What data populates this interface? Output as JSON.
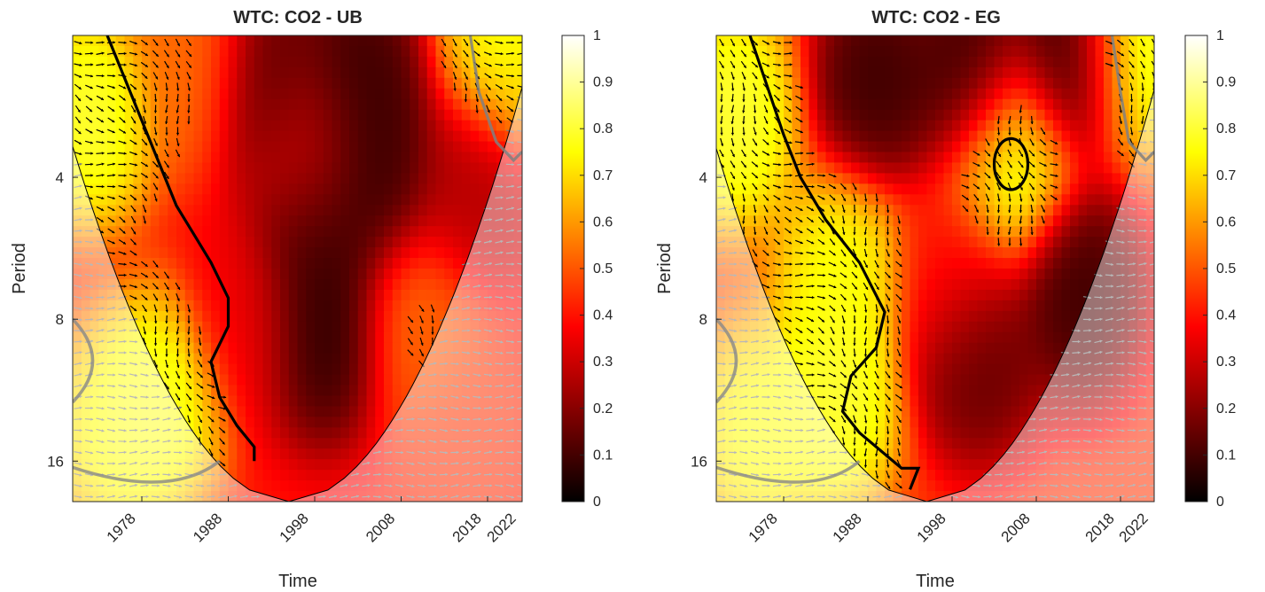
{
  "chart_data": [
    {
      "type": "heatmap",
      "title": "WTC: CO2 - UB",
      "xlabel": "Time",
      "ylabel": "Period",
      "x_ticks": [
        "1978",
        "1988",
        "1998",
        "2008",
        "2018",
        "2022"
      ],
      "x_tick_values": [
        1978,
        1988,
        1998,
        2008,
        2018,
        2022
      ],
      "xlim": [
        1970,
        2022
      ],
      "y_ticks": [
        "4",
        "8",
        "16"
      ],
      "y_tick_values": [
        4,
        8,
        16
      ],
      "ylim": [
        2,
        19.5
      ],
      "y_scale": "log2",
      "y_direction": "reversed",
      "colorbar": {
        "ticks": [
          "0",
          "0.1",
          "0.2",
          "0.3",
          "0.4",
          "0.5",
          "0.6",
          "0.7",
          "0.8",
          "0.9",
          "1"
        ],
        "range": [
          0,
          1
        ],
        "colormap": [
          "#000000",
          "#550000",
          "#aa0000",
          "#ff0000",
          "#ff5500",
          "#ffaa00",
          "#ffff00",
          "#ffff80",
          "#ffffff"
        ]
      },
      "coi_apex_year": 1995,
      "coherence_hotspots": [
        {
          "year": 1972,
          "period": 3,
          "coherence": 0.85
        },
        {
          "year": 1980,
          "period": 12,
          "coherence": 0.85
        },
        {
          "year": 1975,
          "period": 14,
          "coherence": 0.8
        },
        {
          "year": 1984,
          "period": 2.3,
          "coherence": 0.55
        },
        {
          "year": 1993,
          "period": 2.5,
          "coherence": 0.1
        },
        {
          "year": 2003,
          "period": 2.5,
          "coherence": 0.05
        },
        {
          "year": 1997,
          "period": 3.6,
          "coherence": 0.35
        },
        {
          "year": 2005,
          "period": 4,
          "coherence": 0.05
        },
        {
          "year": 1998,
          "period": 5.2,
          "coherence": 0.05
        },
        {
          "year": 1999,
          "period": 8.5,
          "coherence": 0.03
        },
        {
          "year": 2010,
          "period": 8,
          "coherence": 0.55
        },
        {
          "year": 1990,
          "period": 8,
          "coherence": 0.35
        },
        {
          "year": 2020,
          "period": 2.1,
          "coherence": 0.8
        },
        {
          "year": 2016,
          "period": 4.3,
          "coherence": 0.25
        },
        {
          "year": 2015,
          "period": 14,
          "coherence": 0.45
        }
      ],
      "coherence_background": 0.4,
      "significance_contour_years": [
        1974,
        1976,
        1978,
        1980,
        1982,
        1984,
        1986,
        1988,
        1988,
        1986,
        1987,
        1989,
        1991,
        1991
      ],
      "significance_contour_log2_periods": [
        1.0,
        1.3,
        1.6,
        1.9,
        2.2,
        2.4,
        2.6,
        2.85,
        3.05,
        3.3,
        3.55,
        3.75,
        3.9,
        4.0
      ],
      "secondary_contour_years": [
        2016,
        2017,
        2019,
        2021,
        2022
      ],
      "secondary_contour_log2_periods": [
        1.0,
        1.4,
        1.75,
        1.88,
        1.82
      ]
    },
    {
      "type": "heatmap",
      "title": "WTC: CO2 - EG",
      "xlabel": "Time",
      "ylabel": "Period",
      "x_ticks": [
        "1978",
        "1988",
        "1998",
        "2008",
        "2018",
        "2022"
      ],
      "x_tick_values": [
        1978,
        1988,
        1998,
        2008,
        2018,
        2022
      ],
      "xlim": [
        1970,
        2022
      ],
      "y_ticks": [
        "4",
        "8",
        "16"
      ],
      "y_tick_values": [
        4,
        8,
        16
      ],
      "ylim": [
        2,
        19.5
      ],
      "y_scale": "log2",
      "y_direction": "reversed",
      "colorbar": {
        "ticks": [
          "0",
          "0.1",
          "0.2",
          "0.3",
          "0.4",
          "0.5",
          "0.6",
          "0.7",
          "0.8",
          "0.9",
          "1"
        ],
        "range": [
          0,
          1
        ],
        "colormap": [
          "#000000",
          "#550000",
          "#aa0000",
          "#ff0000",
          "#ff5500",
          "#ffaa00",
          "#ffff00",
          "#ffff80",
          "#ffffff"
        ]
      },
      "coi_apex_year": 1995,
      "coherence_hotspots": [
        {
          "year": 1972,
          "period": 3,
          "coherence": 0.85
        },
        {
          "year": 1984,
          "period": 12,
          "coherence": 0.85
        },
        {
          "year": 1975,
          "period": 14,
          "coherence": 0.8
        },
        {
          "year": 1985,
          "period": 6.5,
          "coherence": 0.8
        },
        {
          "year": 1989,
          "period": 2.5,
          "coherence": 0.05
        },
        {
          "year": 2000,
          "period": 2.4,
          "coherence": 0.05
        },
        {
          "year": 2012,
          "period": 2.2,
          "coherence": 0.05
        },
        {
          "year": 2005,
          "period": 3.7,
          "coherence": 0.85
        },
        {
          "year": 2013,
          "period": 7,
          "coherence": 0.05
        },
        {
          "year": 2001,
          "period": 9.5,
          "coherence": 0.1
        },
        {
          "year": 1998,
          "period": 6.5,
          "coherence": 0.4
        },
        {
          "year": 2020,
          "period": 2.1,
          "coherence": 0.85
        }
      ],
      "coherence_background": 0.45,
      "significance_contour_years": [
        1974,
        1976,
        1978,
        1980,
        1983,
        1987,
        1990,
        1989,
        1986,
        1985,
        1987,
        1990,
        1992,
        1994,
        1993
      ],
      "significance_contour_log2_periods": [
        1.0,
        1.35,
        1.7,
        2.0,
        2.3,
        2.6,
        2.95,
        3.2,
        3.4,
        3.65,
        3.8,
        3.95,
        4.05,
        4.05,
        4.2
      ],
      "circle_contour": {
        "year": 2005,
        "period": 3.75,
        "rx_years": 2,
        "ry_log2": 0.18
      },
      "secondary_contour_years": [
        2017,
        2018,
        2019,
        2021,
        2022
      ],
      "secondary_contour_log2_periods": [
        1.0,
        1.4,
        1.75,
        1.88,
        1.82
      ]
    }
  ]
}
